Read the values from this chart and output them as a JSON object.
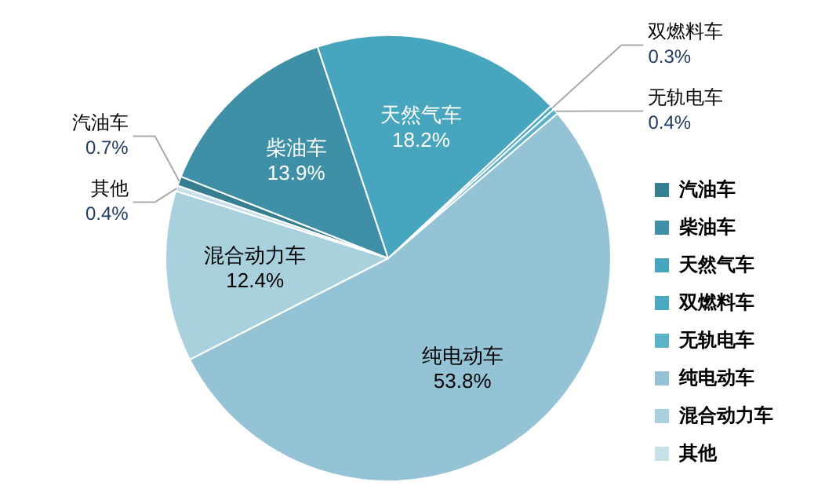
{
  "chart_data": {
    "type": "pie",
    "categories": [
      "汽油车",
      "柴油车",
      "天然气车",
      "双燃料车",
      "无轨电车",
      "纯电动车",
      "混合动力车",
      "其他"
    ],
    "values": [
      0.7,
      13.9,
      18.2,
      0.3,
      0.4,
      53.8,
      12.4,
      0.4
    ],
    "value_labels": [
      "0.7%",
      "13.9%",
      "18.2%",
      "0.3%",
      "0.4%",
      "53.8%",
      "12.4%",
      "0.4%"
    ],
    "colors": [
      "#357f91",
      "#3f8fa7",
      "#47a5be",
      "#4aa9c2",
      "#5cb3c9",
      "#94c3d6",
      "#a9d0dd",
      "#c5e0e8"
    ],
    "legend": "right"
  }
}
